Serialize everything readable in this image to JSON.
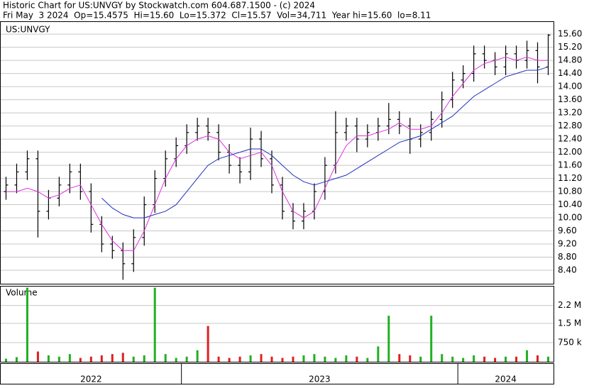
{
  "header": {
    "title": "Historic Chart for US:UNVGY by Stockwatch.com 604.687.1500 - (c) 2024",
    "summary": "Fri May  3 2024  Op=15.4575  Hi=15.60  Lo=15.372  Cl=15.57  Vol=34,711  Year hi=15.60  lo=8.11"
  },
  "chart_data": [
    {
      "type": "ohlc",
      "label": "US:UNVGY",
      "bar_color": "#000000",
      "grid": true,
      "ylim": [
        7.99,
        15.97
      ],
      "yticks": [
        {
          "value": 8.4,
          "label": "8.40"
        },
        {
          "value": 8.8,
          "label": "8.80"
        },
        {
          "value": 9.2,
          "label": "9.20"
        },
        {
          "value": 9.6,
          "label": "9.60"
        },
        {
          "value": 10,
          "label": "10.00"
        },
        {
          "value": 10.4,
          "label": "10.40"
        },
        {
          "value": 10.8,
          "label": "10.80"
        },
        {
          "value": 11.2,
          "label": "11.20"
        },
        {
          "value": 11.6,
          "label": "11.60"
        },
        {
          "value": 12,
          "label": "12.00"
        },
        {
          "value": 12.4,
          "label": "12.40"
        },
        {
          "value": 12.8,
          "label": "12.80"
        },
        {
          "value": 13.2,
          "label": "13.20"
        },
        {
          "value": 13.6,
          "label": "13.60"
        },
        {
          "value": 14,
          "label": "14.00"
        },
        {
          "value": 14.4,
          "label": "14.40"
        },
        {
          "value": 14.8,
          "label": "14.80"
        },
        {
          "value": 15.2,
          "label": "15.20"
        },
        {
          "value": 15.6,
          "label": "15.60"
        }
      ],
      "open": [
        10.8,
        11.0,
        11.4,
        11.8,
        10.2,
        10.6,
        11.0,
        11.4,
        10.8,
        9.8,
        9.2,
        9.0,
        8.6,
        9.4,
        10.4,
        11.2,
        11.8,
        12.2,
        12.6,
        12.8,
        12.6,
        12.0,
        11.6,
        11.4,
        12.4,
        11.8,
        11.0,
        10.2,
        9.9,
        10.2,
        10.8,
        11.6,
        12.6,
        12.8,
        12.4,
        12.6,
        12.8,
        13.0,
        12.8,
        12.4,
        12.6,
        13.0,
        13.6,
        14.2,
        14.4,
        15.0,
        14.8,
        14.6,
        15.0,
        14.8,
        15.1,
        14.6
      ],
      "high": [
        11.25,
        11.65,
        12.05,
        12.05,
        10.85,
        11.25,
        11.65,
        11.65,
        11.05,
        10.05,
        9.45,
        9.25,
        9.65,
        10.65,
        11.45,
        12.05,
        12.45,
        12.85,
        13.05,
        13.05,
        12.85,
        12.25,
        11.85,
        12.75,
        12.65,
        12.05,
        11.25,
        10.45,
        10.45,
        11.05,
        11.85,
        13.25,
        13.05,
        13.05,
        12.85,
        13.05,
        13.5,
        13.25,
        13.05,
        12.85,
        13.25,
        13.85,
        14.45,
        14.65,
        15.25,
        15.25,
        15.05,
        15.25,
        15.25,
        15.4,
        15.35,
        15.6
      ],
      "low": [
        10.55,
        10.75,
        11.15,
        9.4,
        9.95,
        10.35,
        10.75,
        10.55,
        9.55,
        8.95,
        8.75,
        8.11,
        8.35,
        9.15,
        10.15,
        10.95,
        11.55,
        11.95,
        12.35,
        12.35,
        11.75,
        11.35,
        11.05,
        11.15,
        11.55,
        10.75,
        9.95,
        9.65,
        9.65,
        9.95,
        10.55,
        11.35,
        12.35,
        12.0,
        12.15,
        12.35,
        12.55,
        12.55,
        11.95,
        12.15,
        12.35,
        12.75,
        13.35,
        13.95,
        14.15,
        14.55,
        14.35,
        14.35,
        14.55,
        14.55,
        14.1,
        14.35
      ],
      "close": [
        11.0,
        11.4,
        11.8,
        10.2,
        10.6,
        11.0,
        11.4,
        10.8,
        9.8,
        9.2,
        9.0,
        8.6,
        9.4,
        10.4,
        11.2,
        11.8,
        12.2,
        12.6,
        12.8,
        12.6,
        12.0,
        11.6,
        11.4,
        12.4,
        11.8,
        11.0,
        10.2,
        9.9,
        10.2,
        10.8,
        11.6,
        12.6,
        12.8,
        12.4,
        12.6,
        12.8,
        13.0,
        12.8,
        12.4,
        12.6,
        13.0,
        13.6,
        14.2,
        14.4,
        15.0,
        14.8,
        14.6,
        15.0,
        14.8,
        15.1,
        14.6,
        15.57
      ],
      "series": [
        {
          "color": "#e030e0",
          "values": [
            10.8,
            10.8,
            10.9,
            10.8,
            10.6,
            10.7,
            10.9,
            11.0,
            10.4,
            9.8,
            9.3,
            9.0,
            9.0,
            9.6,
            10.4,
            11.2,
            11.8,
            12.2,
            12.4,
            12.5,
            12.4,
            12.0,
            11.8,
            11.9,
            12.0,
            11.6,
            10.8,
            10.2,
            10.0,
            10.2,
            10.9,
            11.6,
            12.2,
            12.5,
            12.5,
            12.6,
            12.7,
            12.9,
            12.7,
            12.7,
            12.8,
            13.2,
            13.7,
            14.1,
            14.5,
            14.7,
            14.8,
            14.9,
            14.8,
            14.9,
            14.8,
            14.8
          ]
        },
        {
          "color": "#2030c0",
          "values": [
            null,
            null,
            null,
            null,
            null,
            null,
            null,
            null,
            null,
            10.6,
            10.3,
            10.1,
            10.0,
            10.0,
            10.1,
            10.2,
            10.4,
            10.8,
            11.2,
            11.6,
            11.8,
            11.9,
            12.0,
            12.1,
            12.1,
            11.9,
            11.6,
            11.3,
            11.1,
            11.0,
            11.1,
            11.2,
            11.3,
            11.5,
            11.7,
            11.9,
            12.1,
            12.3,
            12.4,
            12.5,
            12.7,
            12.9,
            13.1,
            13.4,
            13.7,
            13.9,
            14.1,
            14.3,
            14.4,
            14.5,
            14.5,
            14.6
          ]
        }
      ]
    },
    {
      "type": "bar",
      "label": "Volume",
      "up_color": "#20b020",
      "down_color": "#e02020",
      "grid": true,
      "ylim": [
        0,
        2940000
      ],
      "yticks": [
        {
          "value": 750000,
          "label": "750 k"
        },
        {
          "value": 1500000,
          "label": "1.5 M"
        },
        {
          "value": 2200000,
          "label": "2.2 M"
        }
      ],
      "values": [
        120000,
        180000,
        2900000,
        400000,
        250000,
        200000,
        300000,
        150000,
        200000,
        250000,
        300000,
        350000,
        200000,
        250000,
        2900000,
        300000,
        150000,
        200000,
        450000,
        1400000,
        200000,
        150000,
        200000,
        250000,
        300000,
        200000,
        150000,
        200000,
        250000,
        300000,
        200000,
        150000,
        250000,
        200000,
        150000,
        600000,
        1800000,
        300000,
        250000,
        200000,
        1800000,
        300000,
        200000,
        150000,
        250000,
        200000,
        150000,
        200000,
        200000,
        450000,
        250000,
        200000
      ],
      "x_labels": [
        "2022",
        "2023",
        "2024"
      ],
      "year_starts": [
        17,
        43
      ]
    }
  ]
}
